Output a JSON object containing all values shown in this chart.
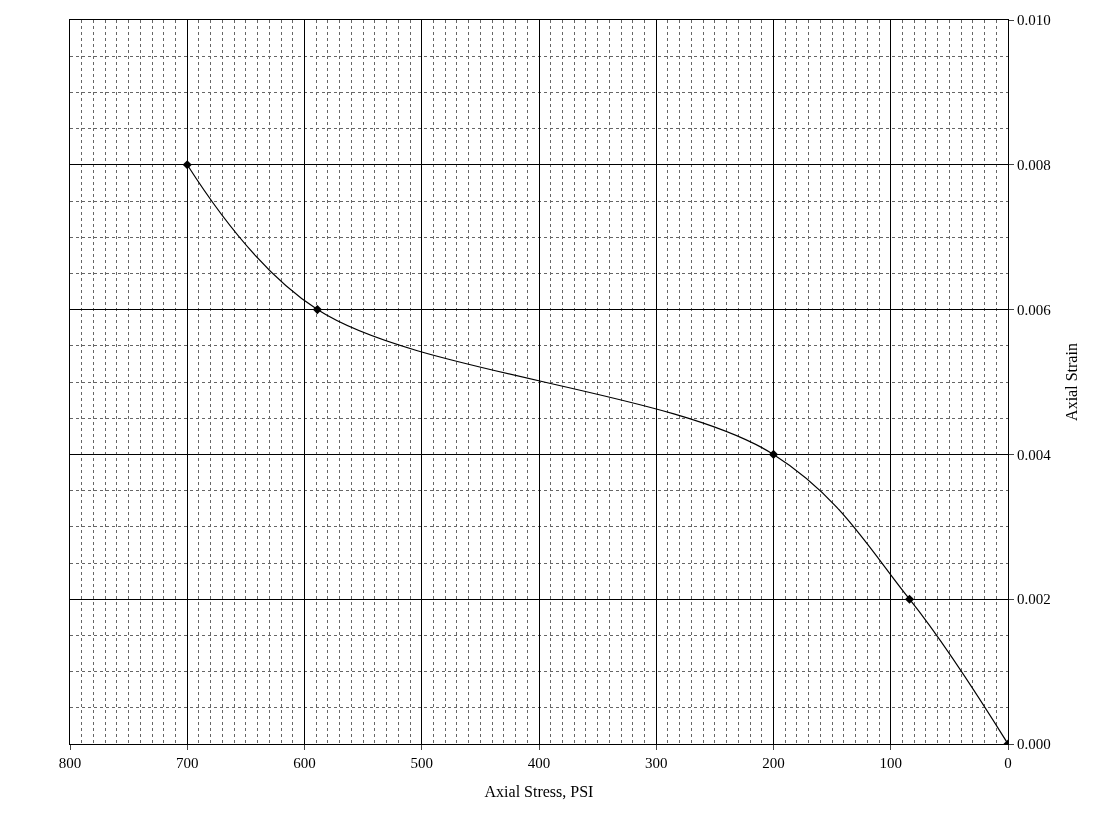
{
  "chart_data": {
    "type": "line",
    "xlabel": "Axial Stress, PSI",
    "ylabel": "Axial Strain",
    "x": [
      0,
      84,
      200,
      589,
      700
    ],
    "series": [
      {
        "color": "#000000",
        "values": [
          0.0,
          0.002,
          0.004,
          0.006,
          0.008
        ]
      }
    ],
    "xlim": [
      800,
      0
    ],
    "xticks": [
      800,
      700,
      600,
      500,
      400,
      300,
      200,
      100,
      0
    ],
    "ylim": [
      0,
      0.01
    ],
    "yticks": [
      {
        "value": 0,
        "label": "0.000"
      },
      {
        "value": 0.002,
        "label": "0.002"
      },
      {
        "value": 0.004,
        "label": "0.004"
      },
      {
        "value": 0.006,
        "label": "0.006"
      },
      {
        "value": 0.008,
        "label": "0.008"
      },
      {
        "value": 0.01,
        "label": "0.010"
      }
    ],
    "grid": true,
    "marker": "diamond",
    "line_style": "solid",
    "legend": false
  }
}
